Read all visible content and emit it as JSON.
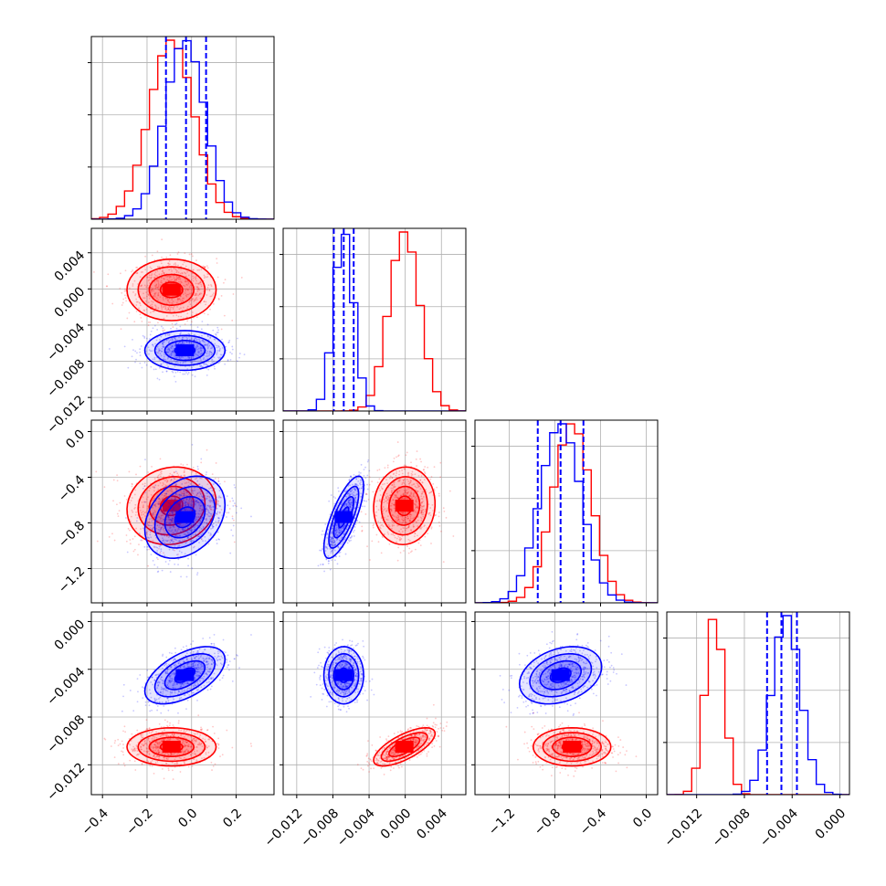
{
  "chart_data": {
    "type": "corner",
    "grid": true,
    "colors": {
      "series_a": "#ff0000",
      "series_b": "#0000ff"
    },
    "parameters": [
      {
        "range": [
          -0.45,
          0.37
        ],
        "ticks": [
          -0.4,
          -0.2,
          0.0,
          0.2
        ],
        "tick_labels": [
          "−0.4",
          "−0.2",
          "0.0",
          "0.2"
        ]
      },
      {
        "range": [
          -0.0135,
          0.0067
        ],
        "ticks": [
          -0.012,
          -0.008,
          -0.004,
          0.0,
          0.004
        ],
        "tick_labels": [
          "−0.012",
          "−0.008",
          "−0.004",
          "0.000",
          "0.004"
        ]
      },
      {
        "range": [
          -1.5,
          0.1
        ],
        "ticks": [
          -1.2,
          -0.8,
          -0.4,
          0.0
        ],
        "tick_labels": [
          "−1.2",
          "−0.8",
          "−0.4",
          "0.0"
        ]
      },
      {
        "range": [
          -0.0145,
          0.0008
        ],
        "ticks": [
          -0.012,
          -0.008,
          -0.004,
          0.0
        ],
        "tick_labels": [
          "−0.012",
          "−0.008",
          "−0.004",
          "0.000"
        ]
      }
    ],
    "series": [
      {
        "color": "#ff0000",
        "mean": [
          -0.09,
          -0.0001,
          -0.65,
          -0.0105
        ],
        "std": [
          0.1,
          0.0017,
          0.17,
          0.0008
        ],
        "correlations": {
          "0-1": 0.0,
          "0-2": 0.1,
          "0-3": 0.0,
          "1-2": 0.05,
          "1-3": 0.7,
          "2-3": 0.0
        }
      },
      {
        "color": "#0000ff",
        "mean": [
          -0.03,
          -0.0068,
          -0.75,
          -0.0045
        ],
        "std": [
          0.09,
          0.0011,
          0.18,
          0.0012
        ],
        "correlations": {
          "0-1": 0.0,
          "0-2": 0.3,
          "0-3": 0.55,
          "1-2": 0.75,
          "1-3": 0.0,
          "2-3": 0.3
        }
      }
    ],
    "quantile_lines": {
      "color": "#0000ff",
      "style": "dashed",
      "values": [
        [
          -0.115,
          -0.025,
          0.065
        ],
        [
          -0.0079,
          -0.0068,
          -0.0057
        ],
        [
          -0.95,
          -0.75,
          -0.55
        ],
        [
          -0.0061,
          -0.0049,
          -0.0036
        ]
      ]
    }
  }
}
